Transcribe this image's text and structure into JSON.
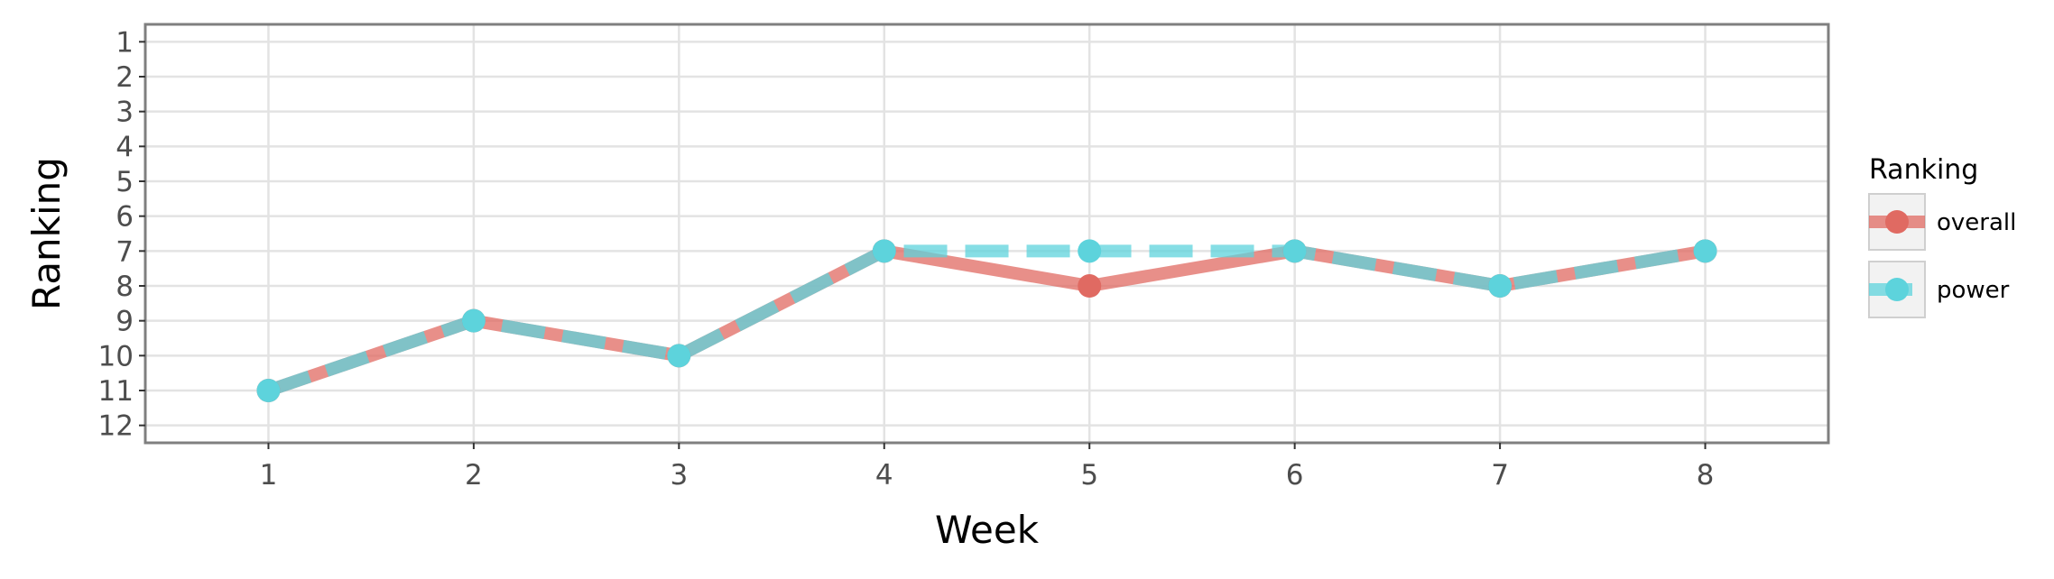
{
  "chart_data": {
    "type": "line",
    "title": "",
    "xlabel": "Week",
    "ylabel": "Ranking",
    "x": [
      1,
      2,
      3,
      4,
      5,
      6,
      7,
      8
    ],
    "x_tick_labels": [
      "1",
      "2",
      "3",
      "4",
      "5",
      "6",
      "7",
      "8"
    ],
    "y_tick_labels": [
      "1",
      "2",
      "3",
      "4",
      "5",
      "6",
      "7",
      "8",
      "9",
      "10",
      "11",
      "12"
    ],
    "y_ticks": [
      1,
      2,
      3,
      4,
      5,
      6,
      7,
      8,
      9,
      10,
      11,
      12
    ],
    "xlim": [
      0.4,
      8.6
    ],
    "ylim": [
      12.5,
      0.5
    ],
    "y_reversed": true,
    "grid": true,
    "legend_placement": "right",
    "legend": {
      "title": "Ranking",
      "entries": [
        "overall",
        "power"
      ]
    },
    "series": [
      {
        "name": "overall",
        "values": [
          11,
          9,
          10,
          7,
          8,
          7,
          8,
          7
        ],
        "color": "#e06a62",
        "line_style": "solid"
      },
      {
        "name": "power",
        "values": [
          11,
          9,
          10,
          7,
          7,
          7,
          8,
          7
        ],
        "color": "#5dd3dc",
        "line_style": "dashed"
      }
    ]
  }
}
